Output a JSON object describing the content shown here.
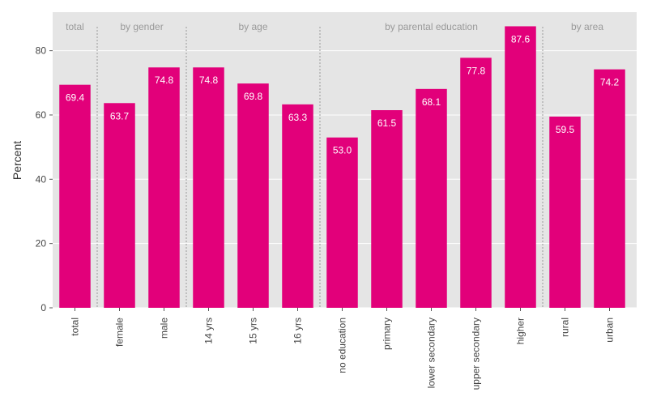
{
  "chart_data": {
    "type": "bar",
    "ylabel": "Percent",
    "ylim": [
      0,
      92
    ],
    "yticks": [
      0,
      20,
      40,
      60,
      80
    ],
    "grid": true,
    "bar_color": "#e2007a",
    "plot_background": "#e5e5e5",
    "categories": [
      "total",
      "female",
      "male",
      "14 yrs",
      "15 yrs",
      "16 yrs",
      "no education",
      "primary",
      "lower secondary",
      "upper secondary",
      "higher",
      "rural",
      "urban"
    ],
    "values": [
      69.4,
      63.7,
      74.8,
      74.8,
      69.8,
      63.3,
      53.0,
      61.5,
      68.1,
      77.8,
      87.6,
      59.5,
      74.2
    ],
    "value_labels": [
      "69.4",
      "63.7",
      "74.8",
      "74.8",
      "69.8",
      "63.3",
      "53.0",
      "61.5",
      "68.1",
      "77.8",
      "87.6",
      "59.5",
      "74.2"
    ],
    "groups": [
      {
        "label": "total",
        "start": 0,
        "end": 0
      },
      {
        "label": "by gender",
        "start": 1,
        "end": 2
      },
      {
        "label": "by age",
        "start": 3,
        "end": 5
      },
      {
        "label": "by parental education",
        "start": 6,
        "end": 10
      },
      {
        "label": "by area",
        "start": 11,
        "end": 12
      }
    ]
  }
}
